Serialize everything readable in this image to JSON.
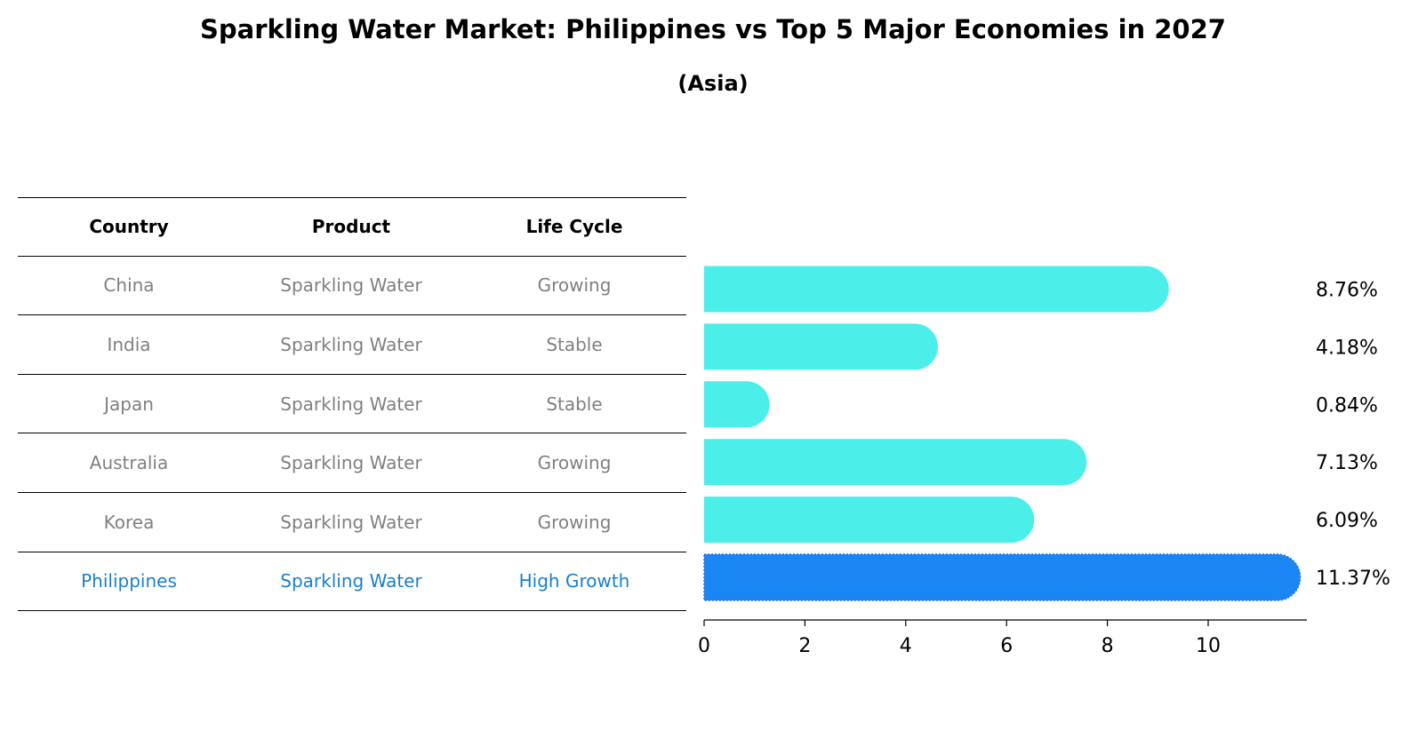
{
  "title": "Sparkling Water Market: Philippines vs Top 5 Major Economies in 2027",
  "subtitle": "(Asia)",
  "table": {
    "headers": [
      "Country",
      "Product",
      "Life Cycle"
    ],
    "rows": [
      {
        "country": "China",
        "product": "Sparkling Water",
        "life_cycle": "Growing"
      },
      {
        "country": "India",
        "product": "Sparkling Water",
        "life_cycle": "Stable"
      },
      {
        "country": "Japan",
        "product": "Sparkling Water",
        "life_cycle": "Stable"
      },
      {
        "country": "Australia",
        "product": "Sparkling Water",
        "life_cycle": "Growing"
      },
      {
        "country": "Korea",
        "product": "Sparkling Water",
        "life_cycle": "Growing"
      },
      {
        "country": "Philippines",
        "product": "Sparkling Water",
        "life_cycle": "High Growth"
      }
    ]
  },
  "chart_data": {
    "type": "bar",
    "orientation": "horizontal",
    "categories": [
      "China",
      "India",
      "Japan",
      "Australia",
      "Korea",
      "Philippines"
    ],
    "values": [
      8.76,
      4.18,
      0.84,
      7.13,
      6.09,
      11.37
    ],
    "value_labels": [
      "8.76%",
      "4.18%",
      "0.84%",
      "7.13%",
      "6.09%",
      "11.37%"
    ],
    "xlim": [
      0,
      12
    ],
    "xticks": [
      0,
      2,
      4,
      6,
      8,
      10
    ],
    "grid": false,
    "highlight_category": "Philippines",
    "colors": {
      "default": "#4ceeea",
      "highlight": "#1a86f4"
    }
  }
}
